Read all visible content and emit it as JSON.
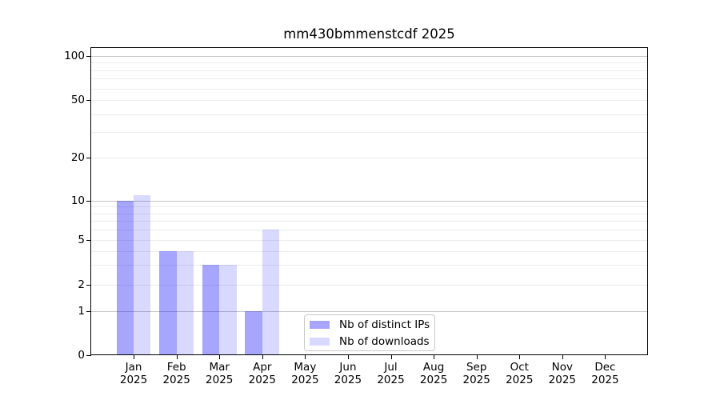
{
  "chart_data": {
    "type": "bar",
    "title": "mm430bmmenstcdf 2025",
    "x_month_labels": [
      "Jan",
      "Feb",
      "Mar",
      "Apr",
      "May",
      "Jun",
      "Jul",
      "Aug",
      "Sep",
      "Oct",
      "Nov",
      "Dec"
    ],
    "x_year_label": "2025",
    "series": [
      {
        "name": "Nb of distinct IPs",
        "color": "#0000ff",
        "alpha": 0.35,
        "color_on_white": "#a6a6ff",
        "values": [
          10,
          4,
          3,
          1,
          0,
          0,
          0,
          0,
          0,
          0,
          0,
          0
        ]
      },
      {
        "name": "Nb of downloads",
        "color": "#0000ff",
        "alpha": 0.15,
        "color_on_white": "#d9d9ff",
        "values": [
          11,
          4,
          3,
          6,
          0,
          0,
          0,
          0,
          0,
          0,
          0,
          0
        ]
      }
    ],
    "y_ticks": [
      0,
      1,
      2,
      5,
      10,
      20,
      50,
      100
    ],
    "y_minor_gridlines": [
      3,
      4,
      6,
      7,
      8,
      9,
      30,
      40,
      60,
      70,
      80,
      90
    ],
    "y_scale": "log-like (custom 0,1,2,5,10,20,50,100)",
    "ylim": [
      0,
      115
    ],
    "grid": true,
    "legend": {
      "position": "lower center",
      "entries": [
        "Nb of distinct IPs",
        "Nb of downloads"
      ]
    }
  },
  "colors": {
    "gridline_emphasis": "#c6c6c6",
    "gridline_light": "#ececec",
    "axis": "#000000",
    "background": "#ffffff",
    "legend_border": "#c9c9c9"
  }
}
